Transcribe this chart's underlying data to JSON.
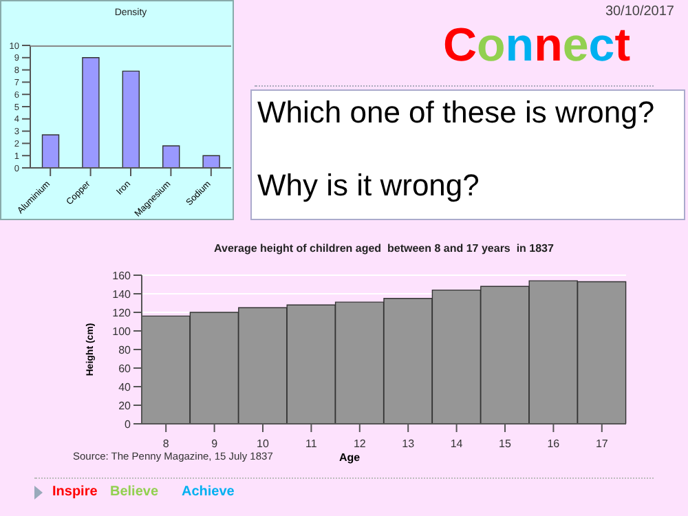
{
  "chart_data": [
    {
      "type": "bar",
      "title": "Density",
      "categories": [
        "Aluminium",
        "Copper",
        "Iron",
        "Magnesium",
        "Sodium"
      ],
      "values": [
        2.7,
        9,
        7.9,
        1.8,
        1
      ],
      "color": "#9999ff",
      "ylim": [
        0,
        10
      ],
      "yticks": [
        0,
        1,
        2,
        3,
        4,
        5,
        6,
        7,
        8,
        9,
        10
      ],
      "grid": false
    },
    {
      "type": "bar",
      "title": "Average height of children aged  between 8 and 17 years  in 1837",
      "xlabel": "Age",
      "ylabel": "Height (cm)",
      "categories": [
        "8",
        "9",
        "10",
        "11",
        "12",
        "13",
        "14",
        "15",
        "16",
        "17"
      ],
      "values": [
        116,
        120,
        125,
        128,
        131,
        135,
        144,
        148,
        154,
        153
      ],
      "color": "#969696",
      "ylim": [
        0,
        160
      ],
      "yticks": [
        0,
        20,
        40,
        60,
        80,
        100,
        120,
        140,
        160
      ],
      "grid": "y",
      "annotations": [
        "Source: The Penny Magazine, 15 July 1837"
      ]
    },
    {
      "type": "other",
      "title": "Connect",
      "subtitle": "30/10/2017",
      "annotations": [
        "Which one of these is wrong?",
        "Why is it wrong?",
        "Inspire",
        "Believe",
        "Achieve"
      ]
    }
  ]
}
